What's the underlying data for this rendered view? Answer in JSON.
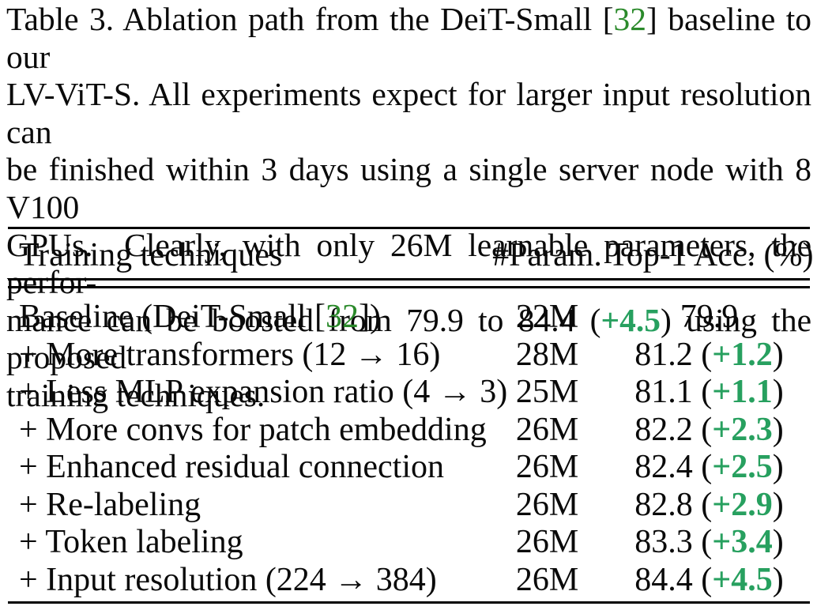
{
  "colors": {
    "citation_green": "#2b8a2b",
    "delta_green": "#27a05f",
    "text": "#0a0a0a",
    "rule": "#000000",
    "background": "#ffffff"
  },
  "caption": {
    "line1_a": "Table 3. Ablation path from the DeiT-Small [",
    "line1_cite": "32",
    "line1_b": "] baseline to our",
    "line2": "LV-ViT-S. All experiments expect for larger input resolution can",
    "line3": "be finished within 3 days using a single server node with 8 V100",
    "line4": "GPUs.  Clearly, with only 26M learnable parameters, the perfor-",
    "line5_a": "mance can be boosted from 79.9 to 84.4 (",
    "line5_delta": "+4.5",
    "line5_b": ") using the proposed",
    "line6": "training techniques."
  },
  "table": {
    "headers": [
      "Training techniques",
      "#Param.",
      "Top-1 Acc. (%)"
    ],
    "rows": [
      {
        "technique": "Baseline (DeiT-Small [",
        "cite": "32",
        "technique_end": "])",
        "params": "22M",
        "acc": "79.9"
      },
      {
        "technique": "+ More transformers (12 → 16)",
        "params": "28M",
        "acc": "81.2 (",
        "delta": "+1.2",
        "acc_end": ")"
      },
      {
        "technique": "+ Less MLP expansion ratio (4 → 3)",
        "params": "25M",
        "acc": "81.1 (",
        "delta": "+1.1",
        "acc_end": ")"
      },
      {
        "technique": "+ More convs for patch embedding",
        "params": "26M",
        "acc": "82.2 (",
        "delta": "+2.3",
        "acc_end": ")"
      },
      {
        "technique": "+ Enhanced residual connection",
        "params": "26M",
        "acc": "82.4 (",
        "delta": "+2.5",
        "acc_end": ")"
      },
      {
        "technique": "+ Re-labeling",
        "params": "26M",
        "acc": "82.8 (",
        "delta": "+2.9",
        "acc_end": ")"
      },
      {
        "technique": "+ Token labeling",
        "params": "26M",
        "acc": "83.3 (",
        "delta": "+3.4",
        "acc_end": ")"
      },
      {
        "technique": "+ Input resolution (224 → 384)",
        "params": "26M",
        "acc": "84.4 (",
        "delta": "+4.5",
        "acc_end": ")"
      }
    ]
  }
}
